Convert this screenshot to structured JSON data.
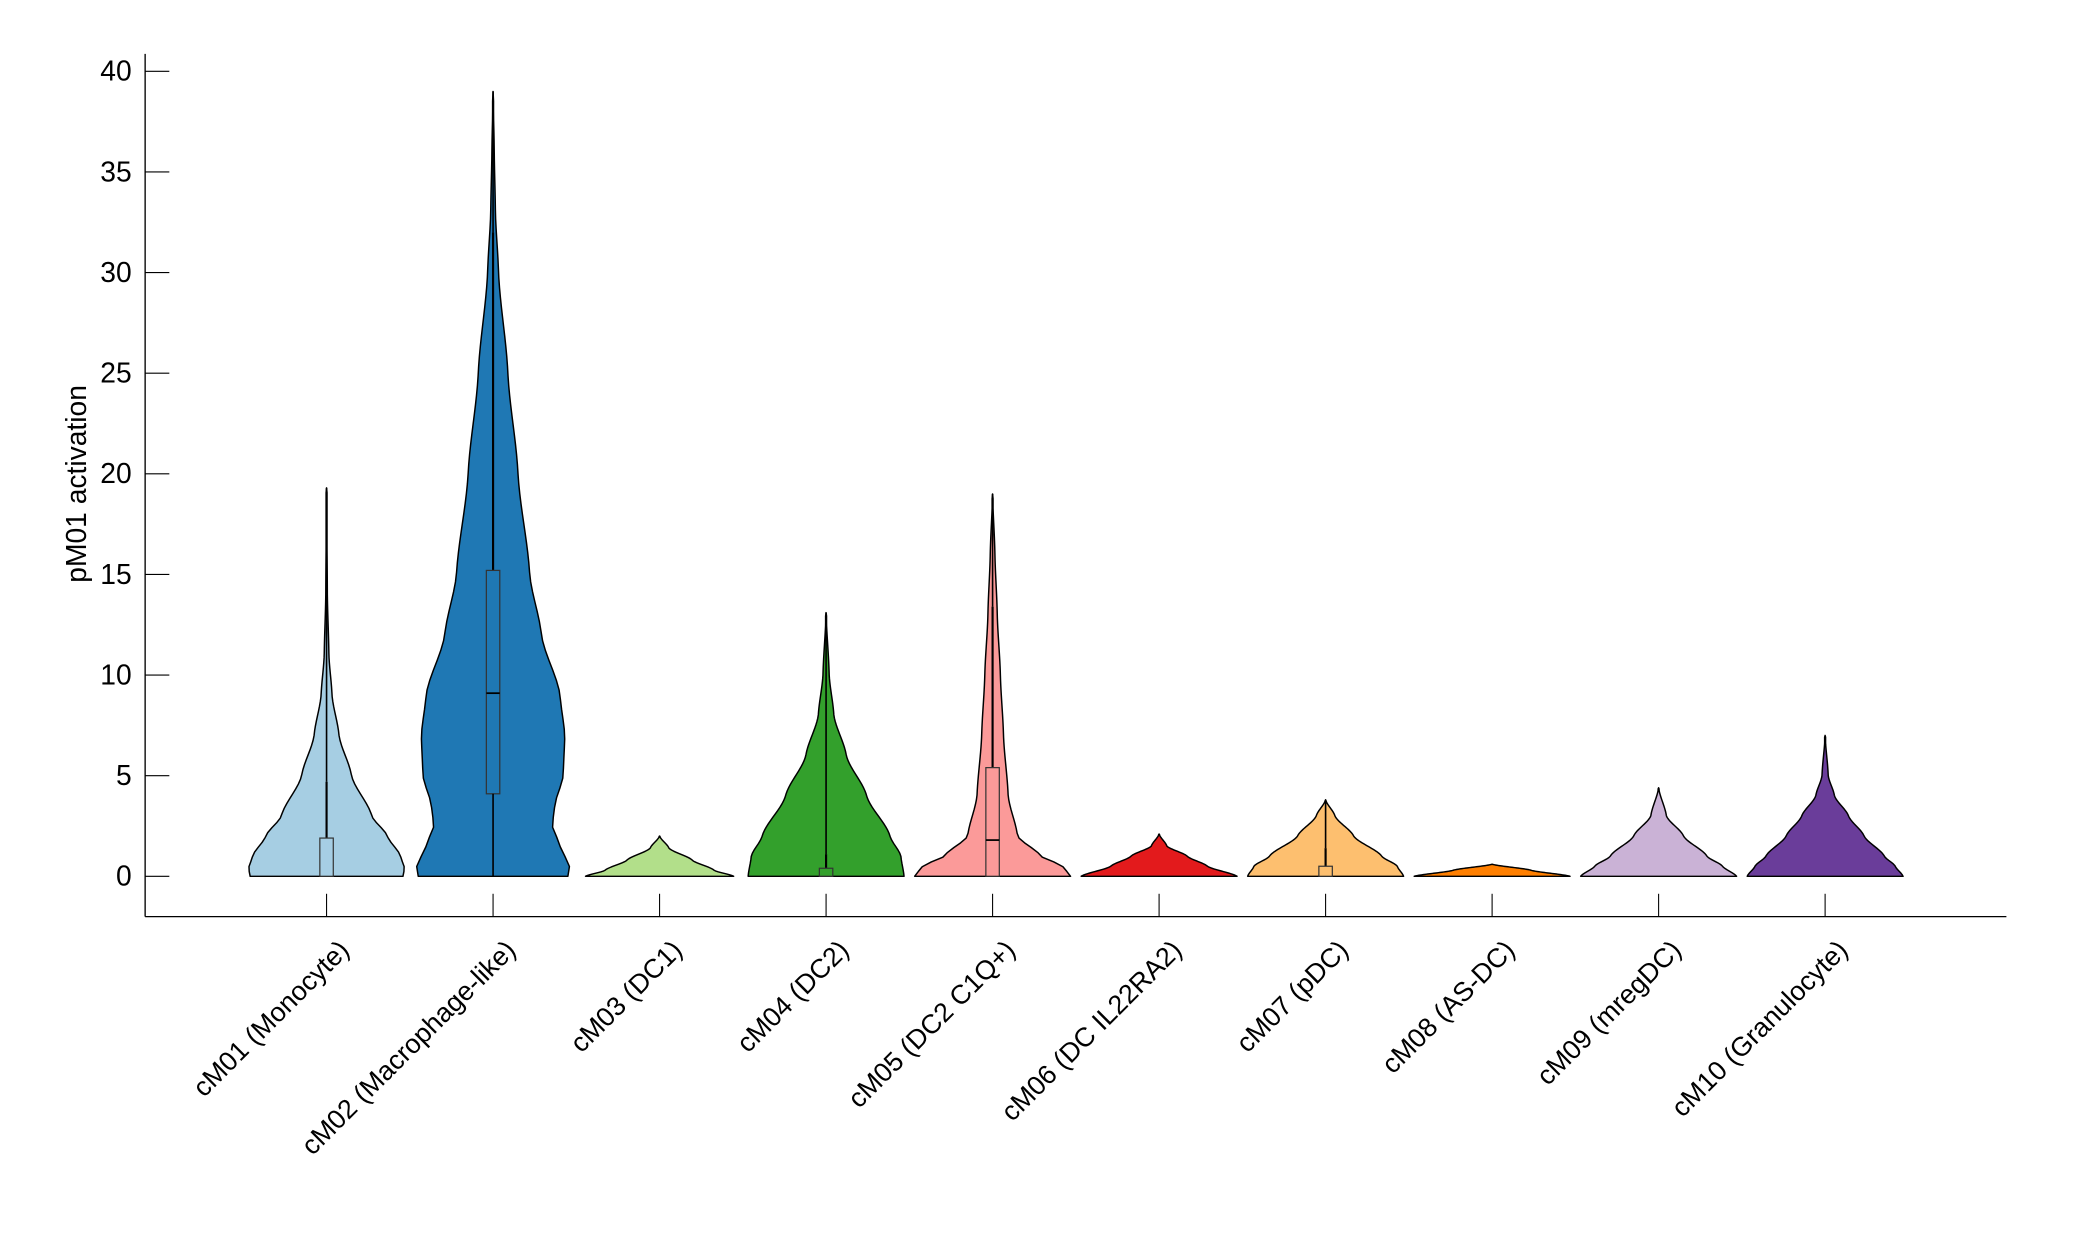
{
  "chart_data": {
    "type": "violin",
    "title": "",
    "xlabel": "",
    "ylabel": "pM01 activation",
    "ylim": [
      -2,
      41
    ],
    "yticks": [
      0,
      5,
      10,
      15,
      20,
      25,
      30,
      35,
      40
    ],
    "grid": false,
    "categories": [
      "cM01 (Monocyte)",
      "cM02 (Macrophage-like)",
      "cM03 (DC1)",
      "cM04 (DC2)",
      "cM05 (DC2 C1Q+)",
      "cM06 (DC IL22RA2)",
      "cM07 (pDC)",
      "cM08 (AS-DC)",
      "cM09 (mregDC)",
      "cM10 (Granulocyte)"
    ],
    "colors": [
      "#a6cee3",
      "#1f78b4",
      "#b2df8a",
      "#33a02c",
      "#fb9a99",
      "#e31a1c",
      "#fdbf6f",
      "#ff7f00",
      "#cab2d6",
      "#6a3d9a"
    ],
    "series": [
      {
        "max": 19.3,
        "box": {
          "q1": 0,
          "median": 0,
          "q3": 1.9,
          "whisker_high": 4.7
        },
        "density": [
          [
            0,
            0.98
          ],
          [
            0.4,
            1.0
          ],
          [
            1,
            0.95
          ],
          [
            2,
            0.78
          ],
          [
            3,
            0.58
          ],
          [
            5,
            0.32
          ],
          [
            7,
            0.16
          ],
          [
            9,
            0.07
          ],
          [
            11,
            0.03
          ],
          [
            14,
            0.01
          ],
          [
            19.3,
            0
          ]
        ]
      },
      {
        "max": 39.0,
        "box": {
          "q1": 4.1,
          "median": 9.1,
          "q3": 15.2,
          "whisker_high": 32.0
        },
        "density": [
          [
            0,
            0.96
          ],
          [
            0.5,
            0.98
          ],
          [
            1.5,
            0.86
          ],
          [
            2.5,
            0.76
          ],
          [
            3.5,
            0.79
          ],
          [
            5,
            0.9
          ],
          [
            7,
            0.92
          ],
          [
            9,
            0.86
          ],
          [
            12,
            0.62
          ],
          [
            15,
            0.47
          ],
          [
            20,
            0.32
          ],
          [
            25,
            0.19
          ],
          [
            30,
            0.07
          ],
          [
            33,
            0.03
          ],
          [
            36,
            0.015
          ],
          [
            39,
            0
          ]
        ]
      },
      {
        "max": 2.0,
        "box": null,
        "density": [
          [
            0,
            0.95
          ],
          [
            0.3,
            0.7
          ],
          [
            0.8,
            0.42
          ],
          [
            1.4,
            0.12
          ],
          [
            2.0,
            0
          ]
        ]
      },
      {
        "max": 13.1,
        "box": {
          "q1": 0,
          "median": 0,
          "q3": 0.4,
          "whisker_high": 1.1
        },
        "density": [
          [
            0,
            1.0
          ],
          [
            1,
            0.96
          ],
          [
            2,
            0.82
          ],
          [
            4,
            0.52
          ],
          [
            6,
            0.26
          ],
          [
            8,
            0.1
          ],
          [
            10,
            0.04
          ],
          [
            13.1,
            0
          ]
        ]
      },
      {
        "max": 19.0,
        "box": {
          "q1": 0,
          "median": 1.8,
          "q3": 5.4,
          "whisker_high": 13.4
        },
        "density": [
          [
            0,
            1.0
          ],
          [
            0.5,
            0.9
          ],
          [
            1,
            0.62
          ],
          [
            2,
            0.32
          ],
          [
            4,
            0.2
          ],
          [
            7,
            0.14
          ],
          [
            10,
            0.1
          ],
          [
            13,
            0.06
          ],
          [
            16,
            0.03
          ],
          [
            19,
            0
          ]
        ]
      },
      {
        "max": 2.1,
        "box": null,
        "density": [
          [
            0,
            1.0
          ],
          [
            0.5,
            0.62
          ],
          [
            1,
            0.36
          ],
          [
            1.5,
            0.1
          ],
          [
            2.1,
            0
          ]
        ]
      },
      {
        "max": 3.8,
        "box": {
          "q1": 0,
          "median": 0,
          "q3": 0.5,
          "whisker_high": 1.4
        },
        "density": [
          [
            0,
            1.0
          ],
          [
            0.5,
            0.92
          ],
          [
            1,
            0.72
          ],
          [
            2,
            0.36
          ],
          [
            3,
            0.12
          ],
          [
            3.8,
            0
          ]
        ]
      },
      {
        "max": 0.6,
        "box": null,
        "density": [
          [
            0,
            1.0
          ],
          [
            0.3,
            0.5
          ],
          [
            0.6,
            0
          ]
        ]
      },
      {
        "max": 4.4,
        "box": null,
        "density": [
          [
            0,
            1.0
          ],
          [
            0.5,
            0.82
          ],
          [
            1,
            0.62
          ],
          [
            2,
            0.32
          ],
          [
            3,
            0.1
          ],
          [
            4.4,
            0
          ]
        ]
      },
      {
        "max": 7.0,
        "box": null,
        "density": [
          [
            0,
            1.0
          ],
          [
            0.5,
            0.9
          ],
          [
            1,
            0.76
          ],
          [
            2,
            0.5
          ],
          [
            3,
            0.3
          ],
          [
            4,
            0.12
          ],
          [
            5,
            0.04
          ],
          [
            7,
            0
          ]
        ]
      }
    ]
  }
}
